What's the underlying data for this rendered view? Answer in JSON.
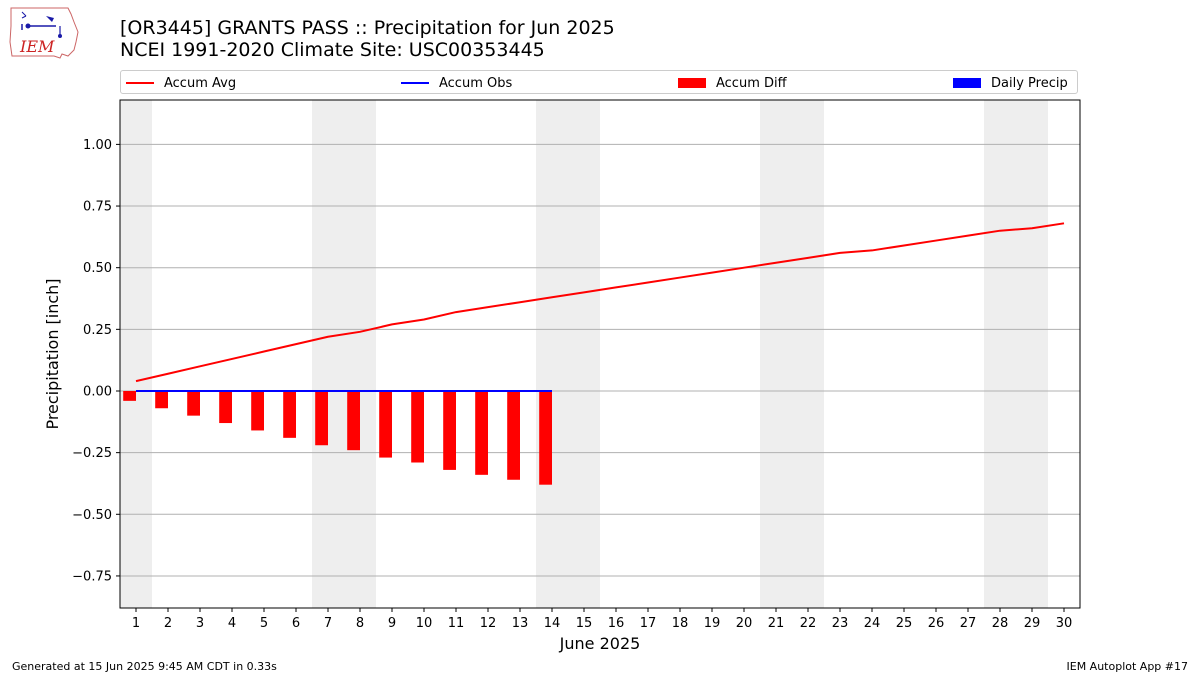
{
  "header": {
    "title_line1": "[OR3445] GRANTS PASS :: Precipitation for Jun 2025",
    "title_line2": "NCEI 1991-2020 Climate Site: USC00353445"
  },
  "logo": {
    "text": "IEM"
  },
  "legend": {
    "accum_avg": "Accum Avg",
    "accum_obs": "Accum Obs",
    "accum_diff": "Accum Diff",
    "daily_precip": "Daily Precip"
  },
  "footer": {
    "left": "Generated at 15 Jun 2025 9:45 AM CDT in 0.33s",
    "right": "IEM Autoplot App #17"
  },
  "colors": {
    "accum_avg": "#ff0000",
    "accum_obs": "#0000ff",
    "accum_diff": "#ff0000",
    "daily_precip": "#0000ff",
    "weekend_shade": "#eeeeee",
    "grid": "#b0b0b0"
  },
  "chart_data": {
    "type": "bar",
    "xlabel": "June 2025",
    "ylabel": "Precipitation [inch]",
    "xlim": [
      0.5,
      30.5
    ],
    "ylim": [
      -0.88,
      1.18
    ],
    "yticks": [
      -0.75,
      -0.5,
      -0.25,
      0.0,
      0.25,
      0.5,
      0.75,
      1.0
    ],
    "ytick_labels": [
      "−0.75",
      "−0.50",
      "−0.25",
      "0.00",
      "0.25",
      "0.50",
      "0.75",
      "1.00"
    ],
    "days": [
      1,
      2,
      3,
      4,
      5,
      6,
      7,
      8,
      9,
      10,
      11,
      12,
      13,
      14,
      15,
      16,
      17,
      18,
      19,
      20,
      21,
      22,
      23,
      24,
      25,
      26,
      27,
      28,
      29,
      30
    ],
    "weekend_days": [
      1,
      7,
      8,
      14,
      15,
      21,
      22,
      28,
      29
    ],
    "grid": true,
    "legend_placement": "top",
    "series": [
      {
        "name": "Accum Avg",
        "kind": "line",
        "values": [
          0.04,
          0.07,
          0.1,
          0.13,
          0.16,
          0.19,
          0.22,
          0.24,
          0.27,
          0.29,
          0.32,
          0.34,
          0.36,
          0.38,
          0.4,
          0.42,
          0.44,
          0.46,
          0.48,
          0.5,
          0.52,
          0.54,
          0.56,
          0.57,
          0.59,
          0.61,
          0.63,
          0.65,
          0.66,
          0.68
        ]
      },
      {
        "name": "Accum Obs",
        "kind": "line",
        "values": [
          0,
          0,
          0,
          0,
          0,
          0,
          0,
          0,
          0,
          0,
          0,
          0,
          0,
          0
        ]
      },
      {
        "name": "Accum Diff",
        "kind": "bar",
        "values": [
          -0.04,
          -0.07,
          -0.1,
          -0.13,
          -0.16,
          -0.19,
          -0.22,
          -0.24,
          -0.27,
          -0.29,
          -0.32,
          -0.34,
          -0.36,
          -0.38
        ]
      },
      {
        "name": "Daily Precip",
        "kind": "bar",
        "values": [
          0,
          0,
          0,
          0,
          0,
          0,
          0,
          0,
          0,
          0,
          0,
          0,
          0,
          0
        ]
      }
    ]
  }
}
